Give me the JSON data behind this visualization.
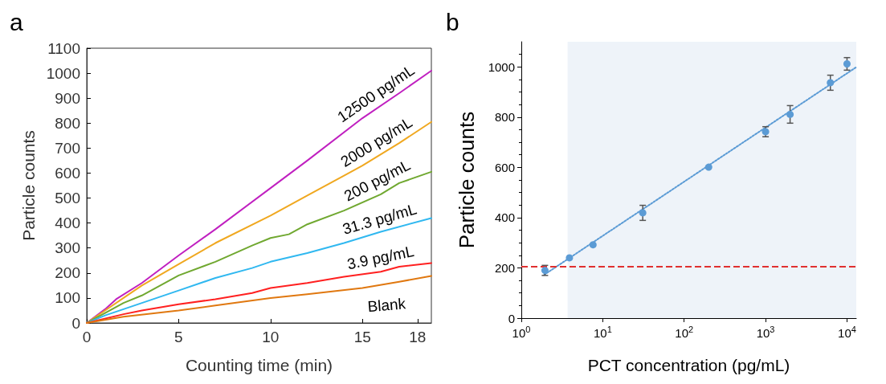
{
  "chart_data": [
    {
      "type": "line",
      "annotations": [
        "a"
      ],
      "xlabel": "Counting time (min)",
      "ylabel": "Particle counts",
      "xlim": [
        0,
        18.75
      ],
      "xticks": [
        0,
        5,
        10,
        15,
        18
      ],
      "ylim": [
        0,
        1100
      ],
      "yticks": [
        0,
        100,
        200,
        300,
        400,
        500,
        600,
        700,
        800,
        900,
        1000,
        1100
      ],
      "grid": false,
      "marker": "none",
      "line_style": "solid",
      "series": [
        {
          "name": "12500 pg/mL",
          "color": "#c020c0",
          "x": [
            0,
            1,
            1.6,
            3,
            5,
            7,
            10,
            12,
            15,
            17,
            18.75
          ],
          "values": [
            0,
            55,
            95,
            160,
            270,
            375,
            540,
            650,
            820,
            920,
            1010
          ]
        },
        {
          "name": "2000 pg/mL",
          "color": "#f0a820",
          "x": [
            0,
            1,
            2,
            3,
            5,
            7,
            10,
            12,
            14,
            15,
            17,
            18.75
          ],
          "values": [
            0,
            50,
            100,
            150,
            235,
            320,
            430,
            510,
            590,
            630,
            720,
            805
          ]
        },
        {
          "name": "200 pg/mL",
          "color": "#70a830",
          "x": [
            0,
            1,
            2,
            3,
            5,
            7,
            9,
            10,
            11,
            12,
            14,
            16,
            17,
            18.75
          ],
          "values": [
            0,
            40,
            80,
            110,
            190,
            245,
            310,
            340,
            355,
            395,
            450,
            515,
            560,
            605
          ]
        },
        {
          "name": "31.3 pg/mL",
          "color": "#30b8f0",
          "x": [
            0,
            1,
            2,
            3,
            5,
            7,
            9,
            10,
            12,
            14,
            16,
            18.75
          ],
          "values": [
            0,
            30,
            55,
            80,
            130,
            180,
            220,
            245,
            280,
            320,
            365,
            420
          ]
        },
        {
          "name": "3.9 pg/mL",
          "color": "#ff2020",
          "x": [
            0,
            2,
            3,
            5,
            7,
            9,
            10,
            12,
            14,
            16,
            17,
            18.75
          ],
          "values": [
            0,
            35,
            50,
            75,
            95,
            120,
            140,
            160,
            185,
            205,
            225,
            240
          ]
        },
        {
          "name": "Blank",
          "color": "#e07810",
          "x": [
            0,
            2,
            5,
            7,
            10,
            12,
            15,
            17,
            18.75
          ],
          "values": [
            0,
            25,
            50,
            70,
            100,
            115,
            140,
            165,
            188
          ]
        }
      ]
    },
    {
      "type": "scatter",
      "annotations": [
        "b"
      ],
      "xlabel": "PCT concentration (pg/mL)",
      "ylabel": "Particle counts",
      "log": "x",
      "xlim": [
        1,
        13000
      ],
      "xticks": [
        {
          "value": 1,
          "label": "10$^{0}$"
        },
        {
          "value": 10,
          "label": "10$^{1}$"
        },
        {
          "value": 100,
          "label": "10$^{2}$"
        },
        {
          "value": 1000,
          "label": "10$^{3}$"
        },
        {
          "value": 10000,
          "label": "10$^{4}$"
        }
      ],
      "ylim": [
        0,
        1100
      ],
      "yticks": [
        0,
        200,
        400,
        600,
        800,
        1000
      ],
      "grid": false,
      "marker": "circle",
      "ref_lines": [
        {
          "axis": "y",
          "value": 205,
          "color": "#e03030",
          "line_style": "dashed"
        }
      ],
      "bands": [
        {
          "axis": "x",
          "from": 3.7,
          "to": 13000,
          "color": "#eef3f9"
        }
      ],
      "series": [
        {
          "color": "#5b9bd5",
          "x": [
            1.95,
            3.9,
            7.6,
            31,
            200,
            1000,
            2000,
            6250,
            10000
          ],
          "values": [
            190,
            240,
            292,
            419,
            601,
            742,
            811,
            937,
            1012
          ],
          "errors": [
            20,
            null,
            null,
            30,
            null,
            20,
            35,
            30,
            25
          ]
        },
        {
          "type": "line",
          "color": "#5b9bd5",
          "line_style": "dotted",
          "marker": "none",
          "x": [
            1.9,
            13000
          ],
          "values": [
            172,
            999
          ]
        }
      ]
    }
  ]
}
